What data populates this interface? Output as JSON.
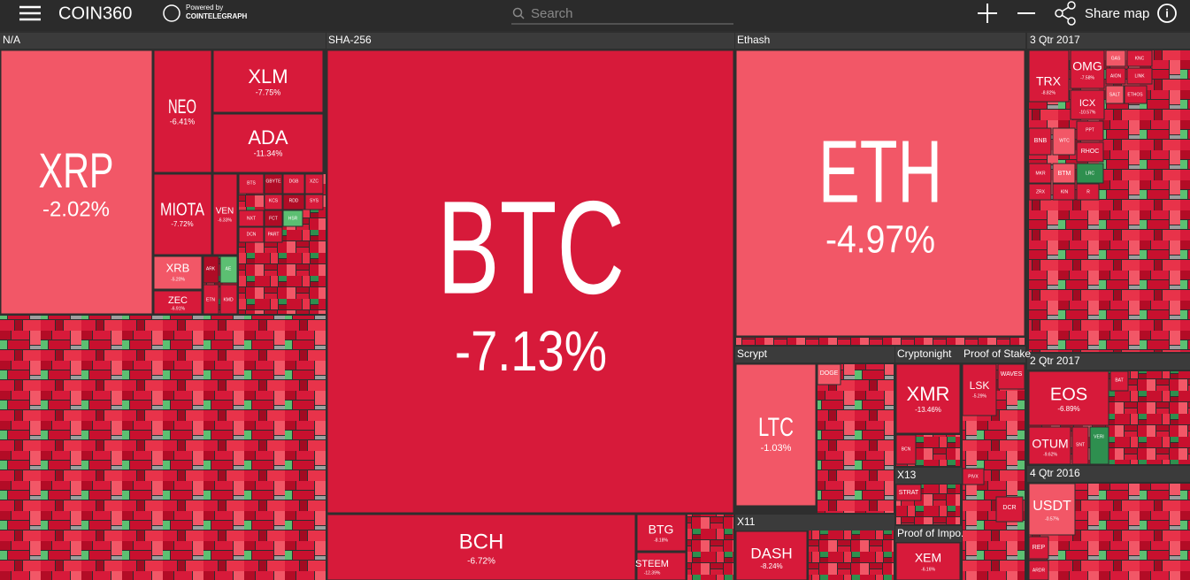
{
  "header": {
    "brand": "COIN360",
    "powered_by": "Powered by",
    "partner": "COINTELEGRAPH",
    "search_placeholder": "Search",
    "share": "Share map"
  },
  "groups": [
    {
      "label": "N/A",
      "tiles": [
        {
          "label": "XRP",
          "change": "-2.02%"
        },
        {
          "label": "NEO",
          "change": "-6.41%"
        },
        {
          "label": "XLM",
          "change": "-7.75%"
        },
        {
          "label": "ADA",
          "change": "-11.34%"
        },
        {
          "label": "MIOTA",
          "change": "-7.72%"
        },
        {
          "label": "VEN",
          "change": "-6.33%"
        },
        {
          "label": "XRB",
          "change": "-5.20%"
        },
        {
          "label": "ZEC",
          "change": "-6.91%"
        },
        {
          "label": "BTS"
        },
        {
          "label": "GBYTE"
        },
        {
          "label": "DGB"
        },
        {
          "label": "XZC"
        },
        {
          "label": "KCS"
        },
        {
          "label": "RDD"
        },
        {
          "label": "SYS"
        },
        {
          "label": "NXT"
        },
        {
          "label": "FCT"
        },
        {
          "label": "HSR"
        },
        {
          "label": "DCN"
        },
        {
          "label": "PART"
        },
        {
          "label": "ARK"
        },
        {
          "label": "AE"
        },
        {
          "label": "ETN"
        },
        {
          "label": "KMD"
        }
      ]
    },
    {
      "label": "SHA-256",
      "tiles": [
        {
          "label": "BTC",
          "change": "-7.13%"
        },
        {
          "label": "BCH",
          "change": "-6.72%"
        },
        {
          "label": "BTG",
          "change": "-8.18%"
        },
        {
          "label": "STEEM",
          "change": "-12.39%"
        }
      ]
    },
    {
      "label": "Ethash",
      "tiles": [
        {
          "label": "ETH",
          "change": "-4.97%"
        }
      ]
    },
    {
      "label": "3 Qtr 2017",
      "tiles": [
        {
          "label": "TRX",
          "change": "-8.82%"
        },
        {
          "label": "OMG",
          "change": "-7.58%"
        },
        {
          "label": "ICX",
          "change": "-10.57%"
        },
        {
          "label": "BNB"
        },
        {
          "label": "WTC"
        },
        {
          "label": "PPT"
        },
        {
          "label": "RHOC"
        },
        {
          "label": "MKR"
        },
        {
          "label": "BTM"
        },
        {
          "label": "LRC"
        },
        {
          "label": "ZRX"
        },
        {
          "label": "KIN"
        },
        {
          "label": "R"
        },
        {
          "label": "GAS"
        },
        {
          "label": "KNC"
        },
        {
          "label": "AION"
        },
        {
          "label": "LINK"
        },
        {
          "label": "SALT"
        },
        {
          "label": "ETHOS"
        }
      ]
    },
    {
      "label": "Scrypt",
      "tiles": [
        {
          "label": "LTC",
          "change": "-1.03%"
        },
        {
          "label": "DOGE"
        }
      ]
    },
    {
      "label": "Cryptonight",
      "tiles": [
        {
          "label": "XMR",
          "change": "-13.46%"
        },
        {
          "label": "BCN"
        }
      ]
    },
    {
      "label": "Proof of Stake",
      "tiles": [
        {
          "label": "LSK",
          "change": "-5.29%"
        },
        {
          "label": "WAVES"
        },
        {
          "label": "PIVX"
        },
        {
          "label": "DCR"
        }
      ]
    },
    {
      "label": "2 Qtr 2017",
      "tiles": [
        {
          "label": "EOS",
          "change": "-6.89%"
        },
        {
          "label": "OTUM",
          "change": "-9.62%"
        },
        {
          "label": "SNT"
        },
        {
          "label": "VERI"
        },
        {
          "label": "BAT"
        }
      ]
    },
    {
      "label": "X13",
      "tiles": [
        {
          "label": "STRAT"
        }
      ]
    },
    {
      "label": "4 Qtr 2016",
      "tiles": [
        {
          "label": "USDT",
          "change": "-0.57%"
        },
        {
          "label": "REP"
        },
        {
          "label": "ARDR"
        }
      ]
    },
    {
      "label": "X11",
      "tiles": [
        {
          "label": "DASH",
          "change": "-8.24%"
        }
      ]
    },
    {
      "label": "Proof of Impo...",
      "tiles": [
        {
          "label": "XEM",
          "change": "-6.16%"
        }
      ]
    }
  ]
}
